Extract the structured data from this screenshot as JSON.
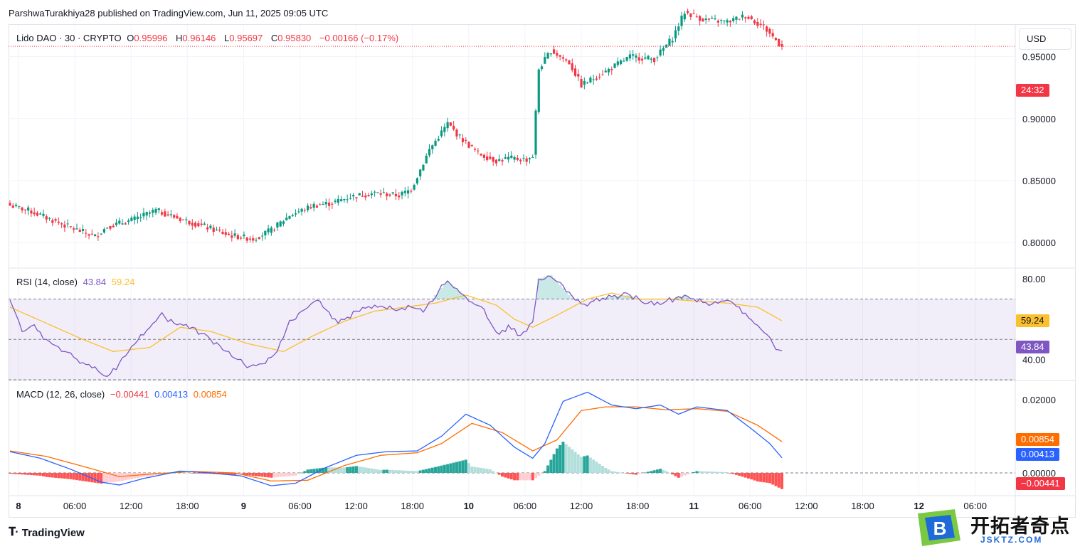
{
  "header": {
    "published_line": "ParshwaTurakhiya28 published on TradingView.com, Jun 11, 2025 09:05 UTC"
  },
  "symbol_legend": {
    "symbol": "Lido DAO · 30 · CRYPTO",
    "o_label": "O",
    "o_value": "0.95996",
    "h_label": "H",
    "h_value": "0.96146",
    "l_label": "L",
    "l_value": "0.95697",
    "c_label": "C",
    "c_value": "0.95830",
    "change": "−0.00166 (−0.17%)"
  },
  "currency_button": "USD",
  "countdown_tag": "24:32",
  "rsi_legend": {
    "label": "RSI (14, close)",
    "rsi_value": "43.84",
    "ma_value": "59.24"
  },
  "macd_legend": {
    "label": "MACD (12, 26, close)",
    "hist_value": "−0.00441",
    "macd_value": "0.00413",
    "signal_value": "0.00854"
  },
  "rsi_tags": {
    "ma": "59.24",
    "rsi": "43.84"
  },
  "macd_tags": {
    "signal": "0.00854",
    "macd": "0.00413",
    "hist": "−0.00441"
  },
  "colors": {
    "up": "#089981",
    "down": "#f23645",
    "rsi": "#7e57c2",
    "rsi_ma": "#fbc02d",
    "macd": "#2962ff",
    "signal": "#ff6d00",
    "hist_up_strong": "#26a69a",
    "hist_up_weak": "#b2dfdb",
    "hist_down_strong": "#ff5252",
    "hist_down_weak": "#ffcdd2"
  },
  "footer": {
    "logo_text": "TradingView",
    "logo_icon": "tradingview-logo-icon"
  },
  "watermark": {
    "text": "开拓者奇点",
    "sub": "JSKTZ.COM",
    "badge_letter": "B"
  },
  "chart_data": [
    {
      "type": "candlestick",
      "title": "Lido DAO · 30 · CRYPTO",
      "ylim": [
        0.78,
        0.975
      ],
      "y_ticks": [
        "0.95000",
        "0.90000",
        "0.85000",
        "0.80000"
      ],
      "y_tick_values": [
        0.95,
        0.9,
        0.85,
        0.8
      ],
      "x_ticks": [
        "8",
        "06:00",
        "12:00",
        "18:00",
        "9",
        "06:00",
        "12:00",
        "18:00",
        "10",
        "06:00",
        "12:00",
        "18:00",
        "11",
        "06:00",
        "12:00",
        "18:00",
        "12",
        "06:00"
      ],
      "current_price": 0.9583,
      "close_anchors": [
        [
          0,
          0.83
        ],
        [
          6,
          0.826
        ],
        [
          12,
          0.82
        ],
        [
          20,
          0.812
        ],
        [
          28,
          0.805
        ],
        [
          32,
          0.813
        ],
        [
          40,
          0.818
        ],
        [
          48,
          0.826
        ],
        [
          56,
          0.819
        ],
        [
          64,
          0.813
        ],
        [
          72,
          0.806
        ],
        [
          80,
          0.803
        ],
        [
          86,
          0.81
        ],
        [
          92,
          0.822
        ],
        [
          100,
          0.83
        ],
        [
          106,
          0.832
        ],
        [
          112,
          0.837
        ],
        [
          120,
          0.84
        ],
        [
          128,
          0.838
        ],
        [
          132,
          0.843
        ],
        [
          138,
          0.875
        ],
        [
          144,
          0.896
        ],
        [
          148,
          0.885
        ],
        [
          154,
          0.872
        ],
        [
          160,
          0.866
        ],
        [
          164,
          0.868
        ],
        [
          170,
          0.867
        ],
        [
          172,
          0.87
        ],
        [
          174,
          0.94
        ],
        [
          178,
          0.955
        ],
        [
          184,
          0.945
        ],
        [
          188,
          0.927
        ],
        [
          196,
          0.938
        ],
        [
          204,
          0.95
        ],
        [
          212,
          0.948
        ],
        [
          218,
          0.965
        ],
        [
          222,
          0.986
        ],
        [
          228,
          0.98
        ],
        [
          236,
          0.978
        ],
        [
          242,
          0.983
        ],
        [
          248,
          0.974
        ],
        [
          254,
          0.958
        ]
      ]
    },
    {
      "type": "line",
      "title": "RSI (14, close)",
      "ylim": [
        30,
        85
      ],
      "y_ticks": [
        "80.00",
        "40.00"
      ],
      "y_tick_values": [
        80,
        40
      ],
      "band": [
        30,
        70
      ],
      "midline": 50,
      "series": [
        {
          "name": "RSI",
          "anchors": [
            [
              0,
              69.5
            ],
            [
              4,
              55
            ],
            [
              8,
              56
            ],
            [
              12,
              50
            ],
            [
              20,
              42
            ],
            [
              28,
              35
            ],
            [
              32,
              31
            ],
            [
              38,
              42
            ],
            [
              44,
              53
            ],
            [
              50,
              62
            ],
            [
              54,
              58
            ],
            [
              60,
              56
            ],
            [
              66,
              50
            ],
            [
              72,
              44
            ],
            [
              78,
              36
            ],
            [
              84,
              38
            ],
            [
              88,
              44
            ],
            [
              92,
              58
            ],
            [
              98,
              67
            ],
            [
              102,
              69
            ],
            [
              108,
              58
            ],
            [
              114,
              64
            ],
            [
              120,
              67
            ],
            [
              126,
              65
            ],
            [
              132,
              66
            ],
            [
              136,
              65
            ],
            [
              140,
              72
            ],
            [
              144,
              79
            ],
            [
              148,
              74
            ],
            [
              152,
              68
            ],
            [
              156,
              65
            ],
            [
              160,
              53
            ],
            [
              164,
              56
            ],
            [
              168,
              52
            ],
            [
              170,
              55
            ],
            [
              172,
              60
            ],
            [
              174,
              80
            ],
            [
              178,
              82
            ],
            [
              184,
              72
            ],
            [
              188,
              67
            ],
            [
              196,
              71
            ],
            [
              204,
              72
            ],
            [
              210,
              68
            ],
            [
              216,
              69
            ],
            [
              222,
              72
            ],
            [
              230,
              67
            ],
            [
              236,
              70
            ],
            [
              240,
              66
            ],
            [
              244,
              59
            ],
            [
              248,
              55
            ],
            [
              252,
              45
            ],
            [
              254,
              43.84
            ]
          ]
        },
        {
          "name": "RSI MA",
          "anchors": [
            [
              0,
              66
            ],
            [
              12,
              58
            ],
            [
              24,
              50
            ],
            [
              34,
              44
            ],
            [
              46,
              46
            ],
            [
              56,
              56
            ],
            [
              66,
              54
            ],
            [
              78,
              48
            ],
            [
              90,
              44
            ],
            [
              100,
              52
            ],
            [
              110,
              59
            ],
            [
              120,
              64
            ],
            [
              130,
              66
            ],
            [
              140,
              68
            ],
            [
              150,
              72
            ],
            [
              160,
              67
            ],
            [
              166,
              60
            ],
            [
              172,
              56
            ],
            [
              180,
              62
            ],
            [
              190,
              70
            ],
            [
              198,
              73
            ],
            [
              206,
              70
            ],
            [
              216,
              70
            ],
            [
              226,
              69
            ],
            [
              236,
              68
            ],
            [
              246,
              66
            ],
            [
              254,
              59.24
            ]
          ]
        }
      ]
    },
    {
      "type": "line",
      "title": "MACD (12, 26, close)",
      "ylim": [
        -0.006,
        0.025
      ],
      "y_ticks": [
        "0.02000",
        "0.00000"
      ],
      "y_tick_values": [
        0.02,
        0
      ],
      "series": [
        {
          "name": "MACD",
          "anchors": [
            [
              0,
              0.0058
            ],
            [
              10,
              0.004
            ],
            [
              20,
              0.001
            ],
            [
              30,
              -0.0025
            ],
            [
              36,
              -0.0033
            ],
            [
              44,
              -0.0015
            ],
            [
              56,
              0.0005
            ],
            [
              66,
              0.0
            ],
            [
              76,
              -0.0008
            ],
            [
              86,
              -0.0035
            ],
            [
              94,
              -0.0028
            ],
            [
              104,
              0.0015
            ],
            [
              114,
              0.0048
            ],
            [
              124,
              0.0058
            ],
            [
              134,
              0.006
            ],
            [
              142,
              0.01
            ],
            [
              150,
              0.016
            ],
            [
              158,
              0.013
            ],
            [
              166,
              0.007
            ],
            [
              172,
              0.004
            ],
            [
              176,
              0.008
            ],
            [
              182,
              0.0195
            ],
            [
              190,
              0.022
            ],
            [
              198,
              0.0185
            ],
            [
              206,
              0.0175
            ],
            [
              214,
              0.0185
            ],
            [
              220,
              0.016
            ],
            [
              226,
              0.018
            ],
            [
              236,
              0.017
            ],
            [
              244,
              0.012
            ],
            [
              250,
              0.008
            ],
            [
              254,
              0.00413
            ]
          ]
        },
        {
          "name": "Signal",
          "anchors": [
            [
              0,
              0.006
            ],
            [
              12,
              0.0045
            ],
            [
              24,
              0.0018
            ],
            [
              36,
              -0.001
            ],
            [
              48,
              -0.0002
            ],
            [
              60,
              0.0004
            ],
            [
              74,
              0.0
            ],
            [
              86,
              -0.0022
            ],
            [
              98,
              -0.002
            ],
            [
              110,
              0.002
            ],
            [
              122,
              0.0048
            ],
            [
              134,
              0.0055
            ],
            [
              142,
              0.008
            ],
            [
              152,
              0.0135
            ],
            [
              162,
              0.011
            ],
            [
              172,
              0.006
            ],
            [
              180,
              0.009
            ],
            [
              188,
              0.017
            ],
            [
              196,
              0.018
            ],
            [
              206,
              0.018
            ],
            [
              216,
              0.0172
            ],
            [
              226,
              0.0175
            ],
            [
              236,
              0.0168
            ],
            [
              246,
              0.013
            ],
            [
              254,
              0.00854
            ]
          ]
        }
      ]
    }
  ]
}
